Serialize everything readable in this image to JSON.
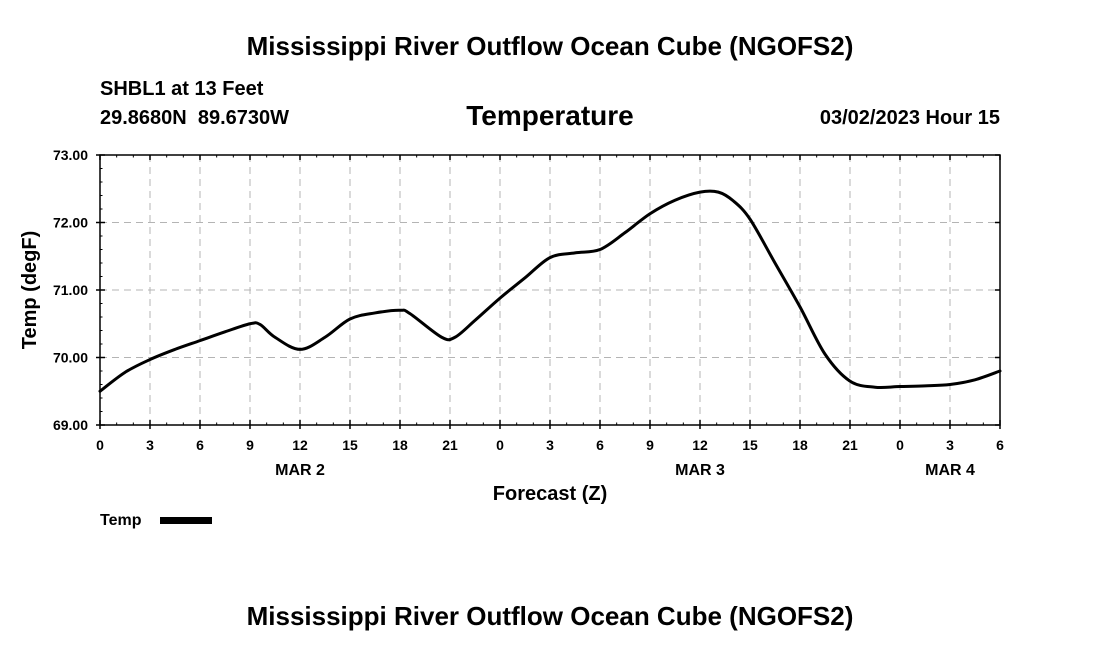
{
  "header": {
    "title_top": "Mississippi River Outflow Ocean Cube (NGOFS2)",
    "station": "SHBL1 at 13 Feet",
    "coords": "29.8680N  89.6730W",
    "variable": "Temperature",
    "datetime": "03/02/2023 Hour 15"
  },
  "footer": {
    "title_bottom": "Mississippi River Outflow Ocean Cube (NGOFS2)"
  },
  "legend": {
    "label": "Temp",
    "color": "#000000"
  },
  "chart_data": {
    "type": "line",
    "title": "Temperature",
    "xlabel": "Forecast (Z)",
    "ylabel": "Temp (degF)",
    "xlim": [
      0,
      54
    ],
    "ylim": [
      69.0,
      73.0
    ],
    "grid": true,
    "yticks": [
      69.0,
      70.0,
      71.0,
      72.0,
      73.0
    ],
    "ytick_labels": [
      "69.00",
      "70.00",
      "71.00",
      "72.00",
      "73.00"
    ],
    "xticks": [
      0,
      3,
      6,
      9,
      12,
      15,
      18,
      21,
      24,
      27,
      30,
      33,
      36,
      39,
      42,
      45,
      48,
      51,
      54
    ],
    "xtick_labels": [
      "0",
      "3",
      "6",
      "9",
      "12",
      "15",
      "18",
      "21",
      "0",
      "3",
      "6",
      "9",
      "12",
      "15",
      "18",
      "21",
      "0",
      "3",
      "6"
    ],
    "day_labels": [
      {
        "x": 12,
        "label": "MAR 2"
      },
      {
        "x": 36,
        "label": "MAR 3"
      },
      {
        "x": 51,
        "label": "MAR 4"
      }
    ],
    "series": [
      {
        "name": "Temp",
        "color": "#000000",
        "x": [
          0,
          1.5,
          3,
          4.5,
          6,
          7.5,
          9,
          9.6,
          10.5,
          12,
          13.5,
          15,
          16.5,
          18,
          18.6,
          20.5,
          21.3,
          22.5,
          24,
          25.5,
          27,
          28.5,
          30,
          31.5,
          33,
          34.5,
          36,
          37.1,
          38,
          39,
          40.5,
          42,
          43.5,
          45,
          46.5,
          48,
          49.5,
          51,
          52.5,
          54
        ],
        "values": [
          69.5,
          69.78,
          69.97,
          70.12,
          70.25,
          70.38,
          70.5,
          70.49,
          70.3,
          70.12,
          70.3,
          70.57,
          70.66,
          70.7,
          70.65,
          70.3,
          70.3,
          70.55,
          70.88,
          71.18,
          71.48,
          71.55,
          71.6,
          71.85,
          72.13,
          72.33,
          72.45,
          72.45,
          72.32,
          72.05,
          71.4,
          70.75,
          70.05,
          69.65,
          69.56,
          69.57,
          69.58,
          69.6,
          69.67,
          69.8
        ]
      }
    ]
  }
}
